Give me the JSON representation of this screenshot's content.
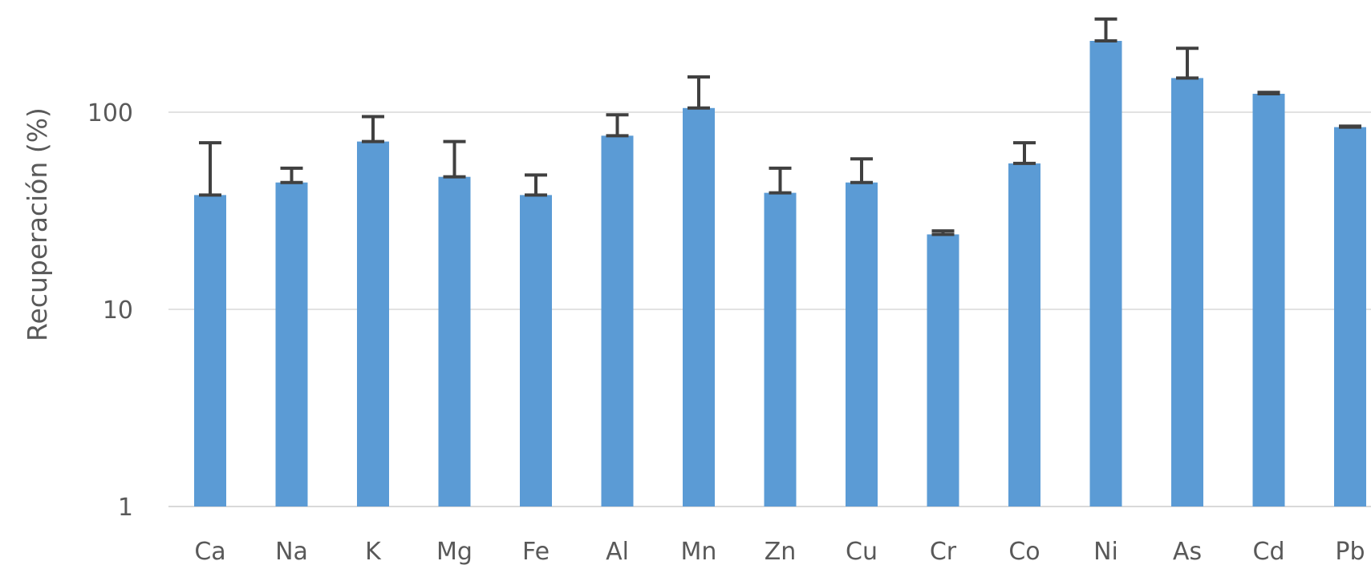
{
  "chart_data": {
    "type": "bar",
    "ylabel": "Recuperación (%)",
    "xlabel": "",
    "yscale": "log",
    "ylim": [
      1,
      300
    ],
    "yticks": [
      1,
      10,
      100
    ],
    "ytick_labels": [
      "1",
      "10",
      "100"
    ],
    "grid": "horizontal",
    "categories": [
      "Ca",
      "Na",
      "K",
      "Mg",
      "Fe",
      "Al",
      "Mn",
      "Zn",
      "Cu",
      "Cr",
      "Co",
      "Ni",
      "As",
      "Cd",
      "Pb"
    ],
    "values": [
      38,
      44,
      71,
      47,
      38,
      76,
      105,
      39,
      44,
      24,
      55,
      230,
      149,
      124,
      84
    ],
    "error_upper": [
      70,
      52,
      95,
      71,
      48,
      97,
      151,
      52,
      58,
      25,
      70,
      297,
      211,
      126,
      85
    ],
    "colors": {
      "bar": "#5b9bd5",
      "error_bar": "#404040",
      "grid": "#d9d9d9",
      "text": "#595959"
    }
  }
}
